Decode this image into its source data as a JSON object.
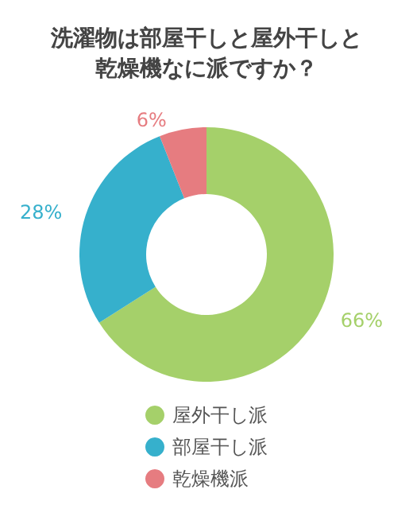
{
  "chart_data": {
    "type": "donut",
    "title": "洗濯物は部屋干しと屋外干しと乾燥機なに派ですか？",
    "categories": [
      "屋外干し派",
      "部屋干し派",
      "乾燥機派"
    ],
    "values": [
      66,
      28,
      6
    ],
    "colors": [
      "#a5d06a",
      "#36b0cc",
      "#e67c80"
    ],
    "value_labels": [
      "66%",
      "28%",
      "6%"
    ],
    "legend": "bottom"
  }
}
